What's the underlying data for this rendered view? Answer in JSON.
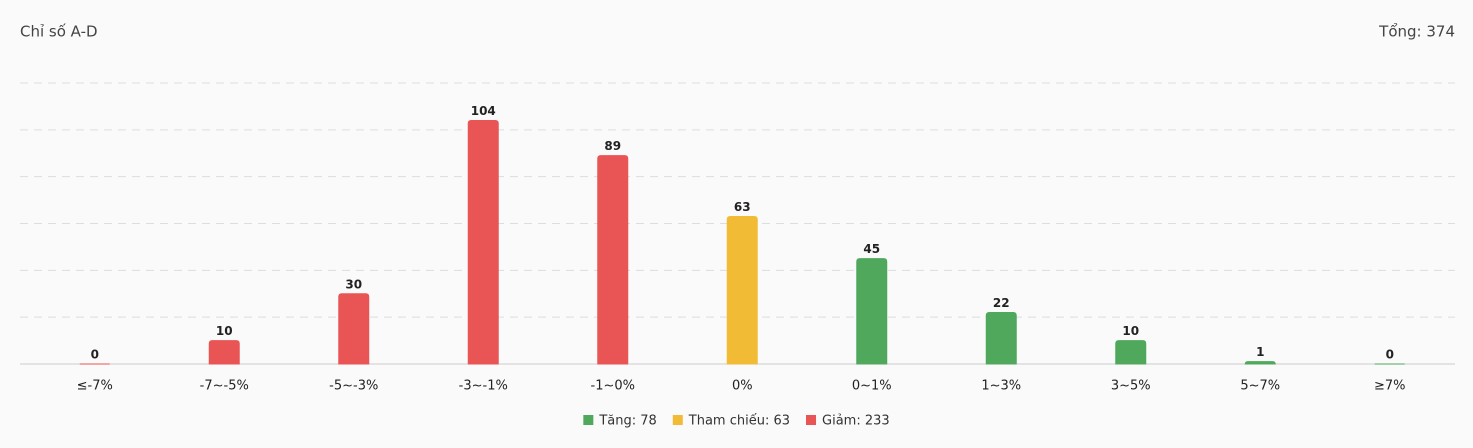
{
  "chart_data": {
    "type": "bar",
    "title": "Chỉ số A-D",
    "total": "Tổng: 374",
    "categories": [
      "≤-7%",
      "-7~-5%",
      "-5~-3%",
      "-3~-1%",
      "-1~0%",
      "0%",
      "0~1%",
      "1~3%",
      "3~5%",
      "5~7%",
      "≥7%"
    ],
    "values": [
      0,
      10,
      30,
      104,
      89,
      63,
      45,
      22,
      10,
      1,
      0
    ],
    "colors": [
      "#e95454",
      "#e95454",
      "#e95454",
      "#e95454",
      "#e95454",
      "#f2bb35",
      "#4fa85c",
      "#4fa85c",
      "#4fa85c",
      "#4fa85c",
      "#4fa85c"
    ],
    "ylim": [
      0,
      120
    ],
    "yticks": [
      0,
      20,
      40,
      60,
      80,
      100,
      120
    ],
    "grid": true,
    "legend": [
      {
        "label": "Tăng: 78",
        "color": "#4fa85c"
      },
      {
        "label": "Tham chiếu: 63",
        "color": "#f2bb35"
      },
      {
        "label": "Giảm: 233",
        "color": "#e95454"
      }
    ]
  }
}
